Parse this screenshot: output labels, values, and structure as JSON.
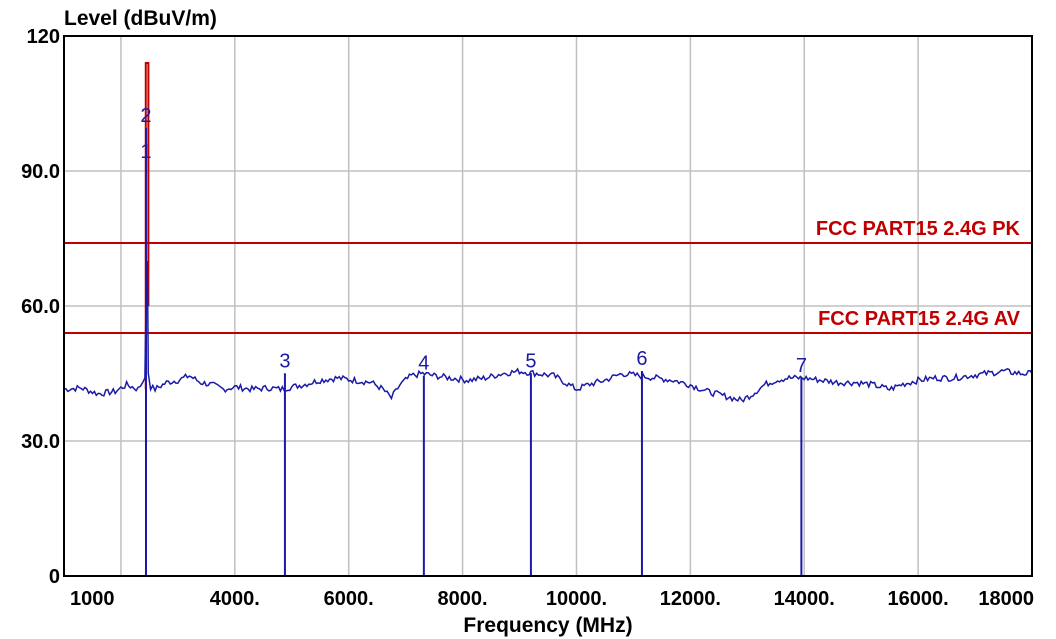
{
  "colors": {
    "trace": "#1a1aa6",
    "limit": "#c00000",
    "grid": "#c0c0c0",
    "frame": "#000000"
  },
  "chart_data": {
    "type": "line",
    "ylabel": "Level (dBuV/m)",
    "xlabel": "Frequency (MHz)",
    "xlim": [
      1000,
      18000
    ],
    "ylim": [
      0,
      120
    ],
    "grid": true,
    "y_ticks": [
      {
        "value": 120,
        "label": "120"
      },
      {
        "value": 90,
        "label": "90.0"
      },
      {
        "value": 60,
        "label": "60.0"
      },
      {
        "value": 30,
        "label": "30.0"
      },
      {
        "value": 0,
        "label": "0"
      }
    ],
    "x_ticks": [
      {
        "value": 1000,
        "label": "1000"
      },
      {
        "value": 4000,
        "label": "4000."
      },
      {
        "value": 6000,
        "label": "6000."
      },
      {
        "value": 8000,
        "label": "8000."
      },
      {
        "value": 10000,
        "label": "10000."
      },
      {
        "value": 12000,
        "label": "12000."
      },
      {
        "value": 14000,
        "label": "14000."
      },
      {
        "value": 16000,
        "label": "16000."
      },
      {
        "value": 18000,
        "label": "18000"
      }
    ],
    "x_grid": [
      1000,
      2000,
      4000,
      6000,
      8000,
      10000,
      12000,
      14000,
      16000,
      18000
    ],
    "y_grid": [
      30,
      60,
      90
    ],
    "limits": [
      {
        "label": "FCC PART15 2.4G PK",
        "value": 74
      },
      {
        "label": "FCC PART15 2.4G AV",
        "value": 54
      }
    ],
    "series": [
      {
        "values": [
          [
            1000,
            41.5
          ],
          [
            1300,
            41.8
          ],
          [
            1600,
            40.5
          ],
          [
            1900,
            41.0
          ],
          [
            2100,
            42.5
          ],
          [
            2300,
            41.5
          ],
          [
            2420,
            44
          ],
          [
            2440,
            60
          ],
          [
            2450,
            66
          ],
          [
            2460,
            70
          ],
          [
            2470,
            62
          ],
          [
            2480,
            45
          ],
          [
            2520,
            42
          ],
          [
            2600,
            41.5
          ],
          [
            2800,
            43
          ],
          [
            3000,
            43.5
          ],
          [
            3200,
            44.5
          ],
          [
            3400,
            43
          ],
          [
            3600,
            42.5
          ],
          [
            3800,
            41.5
          ],
          [
            4000,
            42
          ],
          [
            4300,
            41.5
          ],
          [
            4600,
            41.8
          ],
          [
            4800,
            41.5
          ],
          [
            5000,
            42
          ],
          [
            5200,
            42.5
          ],
          [
            5500,
            43.5
          ],
          [
            5800,
            44
          ],
          [
            6100,
            43.5
          ],
          [
            6400,
            43
          ],
          [
            6600,
            41.5
          ],
          [
            6750,
            39.5
          ],
          [
            6900,
            42.5
          ],
          [
            7100,
            44.5
          ],
          [
            7300,
            45
          ],
          [
            7500,
            44.5
          ],
          [
            7800,
            44
          ],
          [
            8100,
            43.5
          ],
          [
            8400,
            44
          ],
          [
            8700,
            45
          ],
          [
            9000,
            45.5
          ],
          [
            9300,
            45
          ],
          [
            9600,
            44.5
          ],
          [
            9800,
            43
          ],
          [
            10000,
            41.5
          ],
          [
            10200,
            42.5
          ],
          [
            10500,
            43.5
          ],
          [
            10800,
            45
          ],
          [
            11100,
            44.5
          ],
          [
            11400,
            44
          ],
          [
            11700,
            43.5
          ],
          [
            12000,
            42.5
          ],
          [
            12300,
            41
          ],
          [
            12600,
            40
          ],
          [
            12900,
            39
          ],
          [
            13100,
            40.5
          ],
          [
            13300,
            42.5
          ],
          [
            13500,
            43.5
          ],
          [
            13700,
            44
          ],
          [
            14000,
            44
          ],
          [
            14300,
            43.5
          ],
          [
            14600,
            43
          ],
          [
            14900,
            43
          ],
          [
            15200,
            42.5
          ],
          [
            15500,
            41.5
          ],
          [
            15700,
            42.5
          ],
          [
            16000,
            43.5
          ],
          [
            16300,
            44
          ],
          [
            16600,
            44
          ],
          [
            16900,
            44.5
          ],
          [
            17200,
            45
          ],
          [
            17500,
            45.5
          ],
          [
            17800,
            45
          ],
          [
            18000,
            45
          ]
        ]
      }
    ],
    "fundamental_peak": {
      "x_start": 2436,
      "x_end": 2482,
      "value": 114
    },
    "markers": [
      {
        "label": "1",
        "x": 2440,
        "y": 92
      },
      {
        "label": "2",
        "x": 2440,
        "y": 100
      },
      {
        "label": "3",
        "x": 4880,
        "y": 45.5
      },
      {
        "label": "4",
        "x": 7320,
        "y": 45
      },
      {
        "label": "5",
        "x": 9200,
        "y": 45.5
      },
      {
        "label": "6",
        "x": 11150,
        "y": 46
      },
      {
        "label": "7",
        "x": 13950,
        "y": 44.5
      }
    ]
  }
}
